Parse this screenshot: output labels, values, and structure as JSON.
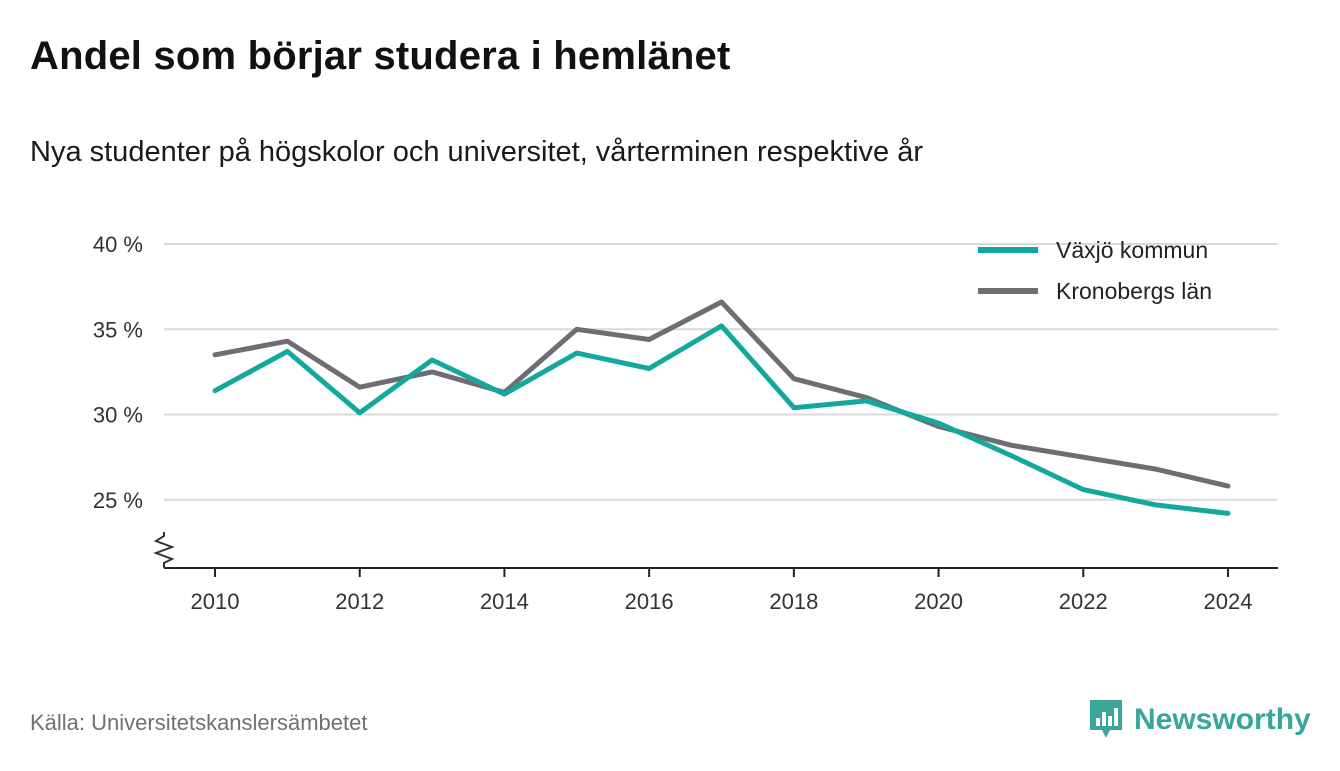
{
  "header": {
    "title": "Andel som börjar studera i hemlänet",
    "subtitle": "Nya studenter på högskolor och universitet, vårterminen respektive år"
  },
  "footer": {
    "source": "Källa: Universitetskanslersämbetet",
    "brand": "Newsworthy",
    "brand_icon": "newsworthy-logo-icon",
    "brand_color": "#3aa69a"
  },
  "chart_data": {
    "type": "line",
    "x": [
      2010,
      2011,
      2012,
      2013,
      2014,
      2015,
      2016,
      2017,
      2018,
      2019,
      2020,
      2021,
      2022,
      2023,
      2024
    ],
    "x_ticks": [
      2010,
      2012,
      2014,
      2016,
      2018,
      2020,
      2022,
      2024
    ],
    "y_ticks": [
      25,
      30,
      35,
      40
    ],
    "y_tick_labels": [
      "25 %",
      "30 %",
      "35 %",
      "40 %"
    ],
    "ylim": [
      21,
      40
    ],
    "y_axis_break": true,
    "grid": true,
    "legend_position": "top-right",
    "series": [
      {
        "name": "Växjö kommun",
        "color": "#13a89e",
        "values": [
          31.4,
          33.7,
          30.1,
          33.2,
          31.2,
          33.6,
          32.7,
          35.2,
          30.4,
          30.8,
          29.5,
          27.6,
          25.6,
          24.7,
          24.2
        ]
      },
      {
        "name": "Kronobergs län",
        "color": "#6e6d73",
        "values": [
          33.5,
          34.3,
          31.6,
          32.5,
          31.3,
          35.0,
          34.4,
          36.6,
          32.1,
          31.0,
          29.3,
          28.2,
          27.5,
          26.8,
          25.8
        ]
      }
    ]
  }
}
